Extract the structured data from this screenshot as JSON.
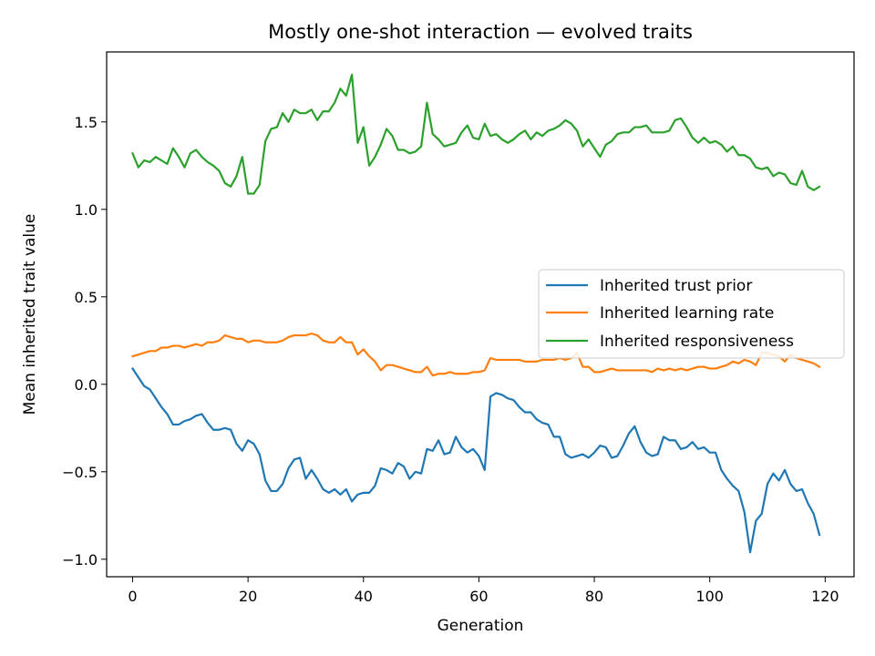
{
  "chart_data": {
    "type": "line",
    "title": "Mostly one-shot interaction — evolved traits",
    "xlabel": "Generation",
    "ylabel": "Mean inherited trait value",
    "xlim": [
      -4.5,
      125
    ],
    "ylim": [
      -1.1,
      1.9
    ],
    "xticks": [
      0,
      20,
      40,
      60,
      80,
      100,
      120
    ],
    "xtick_labels": [
      "0",
      "20",
      "40",
      "60",
      "80",
      "100",
      "120"
    ],
    "yticks": [
      -1.0,
      -0.5,
      0.0,
      0.5,
      1.0,
      1.5
    ],
    "ytick_labels": [
      "−1.0",
      "−0.5",
      "0.0",
      "0.5",
      "1.0",
      "1.5"
    ],
    "grid": false,
    "legend_position": "center-right",
    "series": [
      {
        "name": "Inherited trust prior",
        "color": "#1f77b4",
        "values": [
          0.09,
          0.04,
          -0.01,
          -0.03,
          -0.08,
          -0.13,
          -0.17,
          -0.23,
          -0.23,
          -0.21,
          -0.2,
          -0.18,
          -0.17,
          -0.22,
          -0.26,
          -0.26,
          -0.25,
          -0.26,
          -0.34,
          -0.38,
          -0.32,
          -0.34,
          -0.4,
          -0.55,
          -0.61,
          -0.61,
          -0.57,
          -0.48,
          -0.43,
          -0.42,
          -0.54,
          -0.49,
          -0.54,
          -0.6,
          -0.62,
          -0.6,
          -0.63,
          -0.6,
          -0.67,
          -0.63,
          -0.62,
          -0.62,
          -0.58,
          -0.48,
          -0.49,
          -0.51,
          -0.45,
          -0.47,
          -0.54,
          -0.5,
          -0.51,
          -0.37,
          -0.38,
          -0.32,
          -0.4,
          -0.39,
          -0.3,
          -0.36,
          -0.39,
          -0.37,
          -0.41,
          -0.49,
          -0.07,
          -0.05,
          -0.06,
          -0.08,
          -0.09,
          -0.13,
          -0.16,
          -0.16,
          -0.2,
          -0.22,
          -0.23,
          -0.3,
          -0.3,
          -0.4,
          -0.42,
          -0.41,
          -0.4,
          -0.42,
          -0.39,
          -0.35,
          -0.36,
          -0.42,
          -0.41,
          -0.35,
          -0.28,
          -0.24,
          -0.33,
          -0.39,
          -0.41,
          -0.4,
          -0.3,
          -0.32,
          -0.32,
          -0.37,
          -0.36,
          -0.33,
          -0.37,
          -0.36,
          -0.39,
          -0.39,
          -0.49,
          -0.54,
          -0.58,
          -0.61,
          -0.73,
          -0.96,
          -0.78,
          -0.74,
          -0.57,
          -0.51,
          -0.55,
          -0.49,
          -0.57,
          -0.61,
          -0.6,
          -0.68,
          -0.74,
          -0.86
        ]
      },
      {
        "name": "Inherited learning rate",
        "color": "#ff7f0e",
        "values": [
          0.16,
          0.17,
          0.18,
          0.19,
          0.19,
          0.21,
          0.21,
          0.22,
          0.22,
          0.21,
          0.22,
          0.23,
          0.22,
          0.24,
          0.24,
          0.25,
          0.28,
          0.27,
          0.26,
          0.26,
          0.24,
          0.25,
          0.25,
          0.24,
          0.24,
          0.24,
          0.25,
          0.27,
          0.28,
          0.28,
          0.28,
          0.29,
          0.28,
          0.25,
          0.24,
          0.24,
          0.27,
          0.24,
          0.24,
          0.17,
          0.2,
          0.16,
          0.13,
          0.08,
          0.11,
          0.11,
          0.1,
          0.09,
          0.08,
          0.07,
          0.07,
          0.1,
          0.05,
          0.06,
          0.06,
          0.07,
          0.06,
          0.06,
          0.06,
          0.07,
          0.07,
          0.08,
          0.15,
          0.14,
          0.14,
          0.14,
          0.14,
          0.14,
          0.13,
          0.13,
          0.13,
          0.14,
          0.14,
          0.14,
          0.15,
          0.14,
          0.15,
          0.18,
          0.1,
          0.1,
          0.07,
          0.07,
          0.08,
          0.09,
          0.08,
          0.08,
          0.08,
          0.08,
          0.08,
          0.08,
          0.07,
          0.09,
          0.08,
          0.09,
          0.08,
          0.09,
          0.08,
          0.09,
          0.1,
          0.1,
          0.09,
          0.09,
          0.1,
          0.11,
          0.13,
          0.12,
          0.14,
          0.13,
          0.11,
          0.18,
          0.18,
          0.17,
          0.16,
          0.13,
          0.17,
          0.15,
          0.14,
          0.13,
          0.12,
          0.1
        ]
      },
      {
        "name": "Inherited responsiveness",
        "color": "#2ca02c",
        "values": [
          1.32,
          1.24,
          1.28,
          1.27,
          1.3,
          1.28,
          1.26,
          1.35,
          1.3,
          1.24,
          1.32,
          1.34,
          1.3,
          1.27,
          1.25,
          1.22,
          1.15,
          1.13,
          1.19,
          1.3,
          1.09,
          1.09,
          1.14,
          1.39,
          1.46,
          1.47,
          1.55,
          1.5,
          1.57,
          1.55,
          1.55,
          1.57,
          1.51,
          1.56,
          1.56,
          1.61,
          1.69,
          1.65,
          1.77,
          1.38,
          1.47,
          1.25,
          1.3,
          1.37,
          1.46,
          1.42,
          1.34,
          1.34,
          1.32,
          1.33,
          1.36,
          1.61,
          1.43,
          1.4,
          1.36,
          1.37,
          1.38,
          1.44,
          1.48,
          1.41,
          1.4,
          1.49,
          1.42,
          1.43,
          1.4,
          1.38,
          1.4,
          1.43,
          1.45,
          1.4,
          1.44,
          1.42,
          1.45,
          1.46,
          1.48,
          1.51,
          1.49,
          1.45,
          1.36,
          1.4,
          1.35,
          1.3,
          1.37,
          1.39,
          1.43,
          1.44,
          1.44,
          1.47,
          1.47,
          1.48,
          1.44,
          1.44,
          1.44,
          1.45,
          1.51,
          1.52,
          1.47,
          1.41,
          1.38,
          1.41,
          1.38,
          1.39,
          1.37,
          1.33,
          1.36,
          1.31,
          1.31,
          1.29,
          1.24,
          1.23,
          1.24,
          1.19,
          1.21,
          1.2,
          1.15,
          1.14,
          1.22,
          1.13,
          1.11,
          1.13
        ]
      }
    ]
  }
}
